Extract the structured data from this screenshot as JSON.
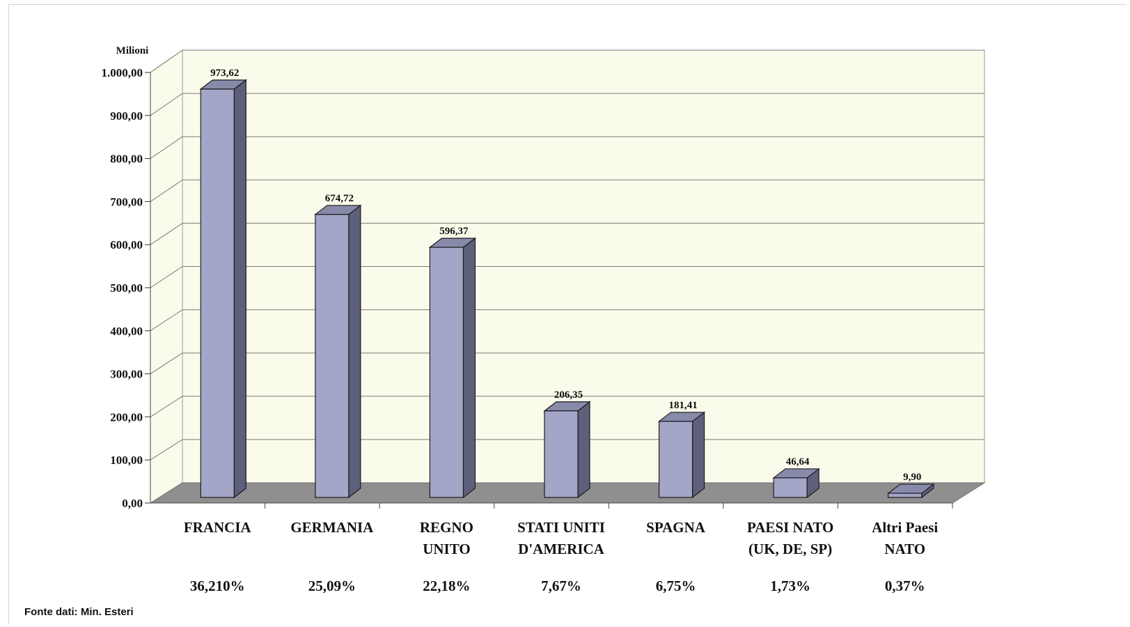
{
  "source_note": "Fonte dati: Min. Esteri",
  "colors": {
    "bar_front": "#a4a6c8",
    "bar_side": "#5e5f7a",
    "bar_top": "#888aaa",
    "plot_bg": "#fbfbeb",
    "floor": "#8f8f8f",
    "grid": "#7a7a7a"
  },
  "chart_data": {
    "type": "bar",
    "title": "",
    "ylabel": "Milioni",
    "xlabel": "",
    "ylim": [
      0,
      1000
    ],
    "yticks": [
      "0,00",
      "100,00",
      "200,00",
      "300,00",
      "400,00",
      "500,00",
      "600,00",
      "700,00",
      "800,00",
      "900,00",
      "1.000,00"
    ],
    "grid": true,
    "categories": [
      [
        "FRANCIA"
      ],
      [
        "GERMANIA"
      ],
      [
        "REGNO",
        "UNITO"
      ],
      [
        "STATI UNITI",
        "D'AMERICA"
      ],
      [
        "SPAGNA"
      ],
      [
        "PAESI NATO",
        "(UK, DE, SP)"
      ],
      [
        "Altri Paesi",
        "NATO"
      ]
    ],
    "values": [
      973.62,
      674.72,
      596.37,
      206.35,
      181.41,
      46.64,
      9.9
    ],
    "value_labels": [
      "973,62",
      "674,72",
      "596,37",
      "206,35",
      "181,41",
      "46,64",
      "9,90"
    ],
    "percentages": [
      "36,210%",
      "25,09%",
      "22,18%",
      "7,67%",
      "6,75%",
      "1,73%",
      "0,37%"
    ]
  }
}
